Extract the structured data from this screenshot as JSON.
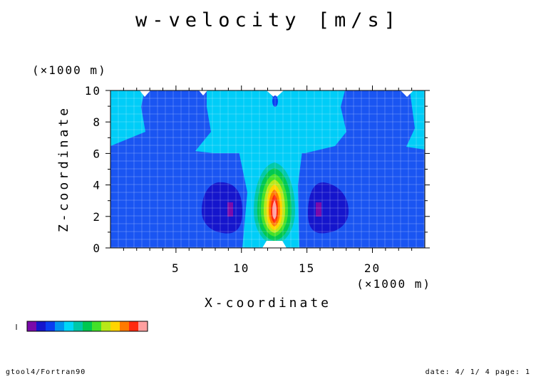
{
  "chart_data": {
    "type": "contour",
    "title": "w-velocity [m/s]",
    "xlabel": "X-coordinate",
    "ylabel": "Z-coordinate",
    "x_units": "(×1000 m)",
    "y_units": "(×1000 m)",
    "xlim": [
      0,
      24
    ],
    "ylim": [
      0,
      10
    ],
    "x_ticks": [
      "5",
      "10",
      "15",
      "20"
    ],
    "y_ticks": [
      "0",
      "2",
      "4",
      "6",
      "8",
      "10"
    ],
    "grid": true,
    "levels": [
      {
        "color": "#7a0aaa"
      },
      {
        "color": "#1515cc"
      },
      {
        "color": "#0a3df0"
      },
      {
        "color": "#0095f0"
      },
      {
        "color": "#00d8f8"
      },
      {
        "color": "#00c8a8"
      },
      {
        "color": "#00c850"
      },
      {
        "color": "#44e02a"
      },
      {
        "color": "#b8e818"
      },
      {
        "color": "#ffd400"
      },
      {
        "color": "#ff7a00"
      },
      {
        "color": "#ff2a10"
      },
      {
        "color": "#ffa0a0"
      }
    ],
    "regions": [
      {
        "name": "background",
        "color": "#1a55f2"
      },
      {
        "name": "upper-band",
        "color": "#00cdf8"
      },
      {
        "name": "central-plume",
        "color": "#00cdf8"
      },
      {
        "name": "dark-lobe-left",
        "color": "#1515cc"
      },
      {
        "name": "dark-lobe-right",
        "color": "#1515cc"
      },
      {
        "name": "core-purple-left",
        "color": "#7a0aaa"
      },
      {
        "name": "core-purple-right",
        "color": "#7a0aaa"
      }
    ]
  },
  "footer": {
    "left": "gtool4/Fortran90",
    "right": "date: 4/ 1/ 4 page: 1"
  }
}
